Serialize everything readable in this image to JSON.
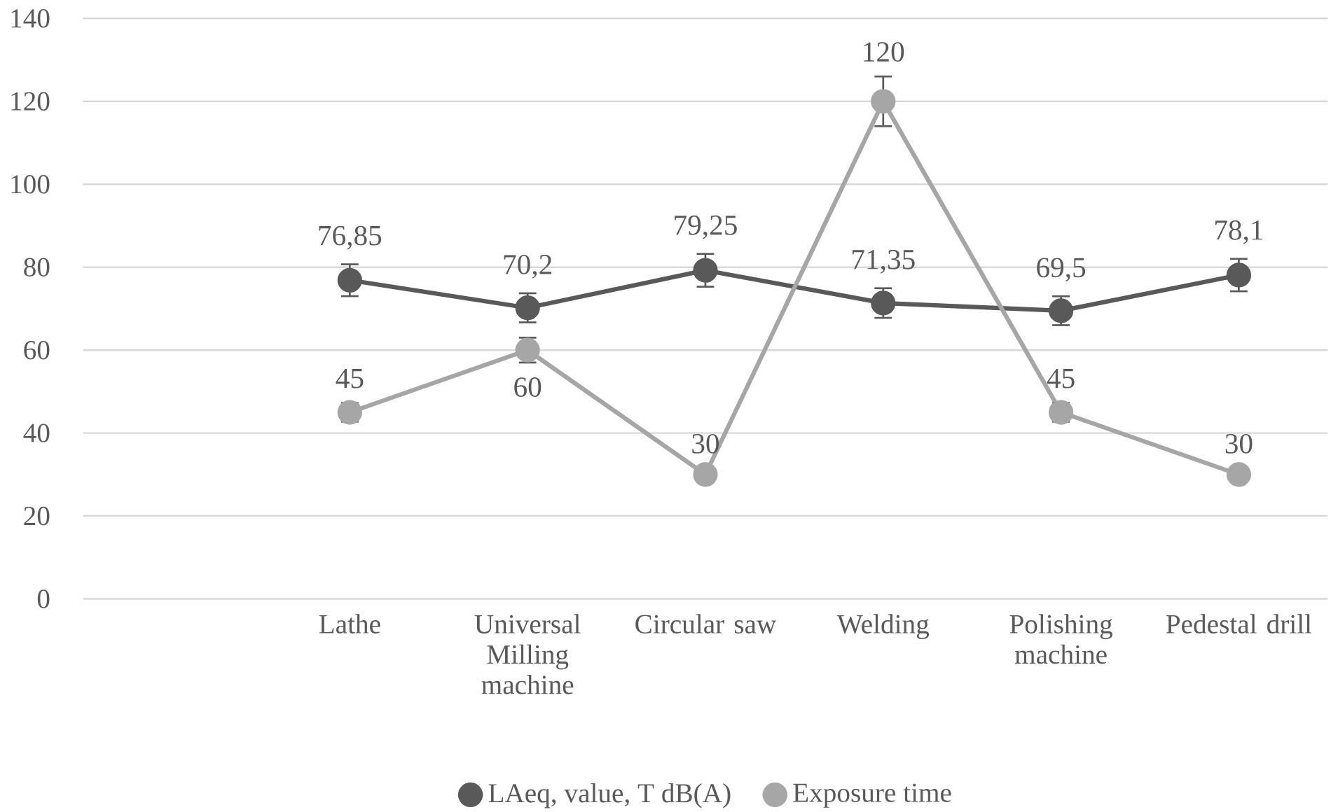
{
  "chart_data": {
    "type": "line",
    "categories": [
      null,
      "Lathe",
      "Universal Milling machine",
      "Circular saw",
      "Welding",
      "Polishing machine",
      "Pedestal drill"
    ],
    "series": [
      {
        "name": "LAeq, value, T dB(A)",
        "color": "#595959",
        "values": [
          null,
          76.85,
          70.2,
          79.25,
          71.35,
          69.5,
          78.1
        ],
        "errors": [
          null,
          3.84,
          3.51,
          3.96,
          3.57,
          3.48,
          3.91
        ],
        "value_labels": [
          null,
          "76,85",
          "70,2",
          "79,25",
          "71,35",
          "69,5",
          "78,1"
        ]
      },
      {
        "name": "Exposure time",
        "color": "#a6a6a6",
        "values": [
          null,
          45,
          60,
          30,
          120,
          45,
          30
        ],
        "errors": [
          null,
          2.25,
          3,
          1.5,
          6,
          2.25,
          1.5
        ],
        "value_labels": [
          null,
          "45",
          "60",
          "30",
          "120",
          "45",
          "30"
        ]
      }
    ],
    "ylim": [
      0,
      140
    ],
    "yticks": [
      0,
      20,
      40,
      60,
      80,
      100,
      120,
      140
    ],
    "grid": "y",
    "legend": "bottom",
    "marker": "circle",
    "line_style": "solid"
  }
}
